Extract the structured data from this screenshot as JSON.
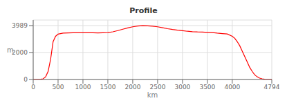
{
  "chart_data": {
    "type": "line",
    "title": "Profile",
    "xlabel": "km",
    "ylabel": "m",
    "x": [
      0,
      30,
      60,
      100,
      150,
      200,
      250,
      300,
      350,
      400,
      450,
      500,
      600,
      700,
      800,
      900,
      1000,
      1100,
      1200,
      1300,
      1400,
      1500,
      1600,
      1700,
      1800,
      1900,
      2000,
      2100,
      2200,
      2300,
      2400,
      2500,
      2600,
      2700,
      2800,
      2900,
      3000,
      3100,
      3200,
      3300,
      3400,
      3500,
      3600,
      3700,
      3800,
      3900,
      4000,
      4050,
      4100,
      4150,
      4200,
      4250,
      4300,
      4350,
      4400,
      4450,
      4500,
      4550,
      4600,
      4650,
      4700,
      4750,
      4794
    ],
    "values": [
      5,
      5,
      8,
      12,
      20,
      50,
      200,
      600,
      1500,
      2800,
      3200,
      3360,
      3430,
      3450,
      3460,
      3465,
      3460,
      3460,
      3455,
      3450,
      3460,
      3470,
      3530,
      3620,
      3720,
      3820,
      3900,
      3960,
      3989,
      3970,
      3950,
      3900,
      3830,
      3760,
      3700,
      3650,
      3610,
      3570,
      3540,
      3520,
      3510,
      3490,
      3470,
      3430,
      3400,
      3370,
      3200,
      3050,
      2800,
      2500,
      2100,
      1700,
      1300,
      900,
      600,
      350,
      200,
      100,
      50,
      20,
      10,
      5,
      5
    ],
    "color": "#ff0000",
    "xlim": [
      0,
      4794
    ],
    "ylim": [
      0,
      4400
    ],
    "xticks": [
      0,
      500,
      1000,
      1500,
      2000,
      2500,
      3000,
      3500,
      4000,
      4794
    ],
    "yticks": [
      0,
      2000,
      3989
    ],
    "grid": true
  }
}
